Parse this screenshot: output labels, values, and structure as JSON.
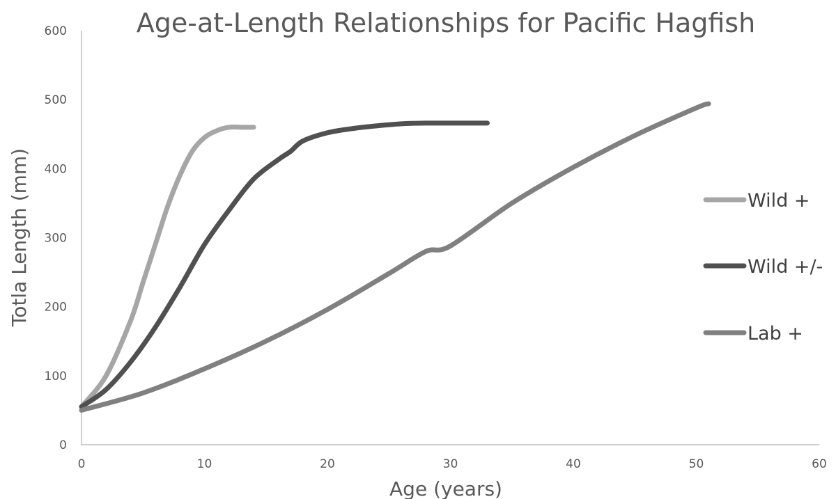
{
  "chart_data": {
    "type": "line",
    "title": "Age-at-Length Relationships for Pacific Hagfish",
    "xlabel": "Age (years)",
    "ylabel": "Totla Length (mm)",
    "xlim": [
      0,
      60
    ],
    "ylim": [
      0,
      600
    ],
    "x_ticks": [
      "0",
      "10",
      "20",
      "30",
      "40",
      "50",
      "60"
    ],
    "y_ticks": [
      "0",
      "100",
      "200",
      "300",
      "400",
      "500",
      "600"
    ],
    "grid": false,
    "legend_position": "right",
    "series": [
      {
        "name": "Wild +",
        "color": "#a6a6a6",
        "x": [
          0,
          2,
          4,
          5,
          6,
          7,
          8,
          9,
          10,
          11,
          12,
          13,
          14
        ],
        "y": [
          55,
          100,
          180,
          235,
          290,
          345,
          390,
          425,
          445,
          455,
          460,
          460,
          460
        ]
      },
      {
        "name": "Wild +/-",
        "color": "#505050",
        "x": [
          0,
          2,
          4,
          6,
          8,
          10,
          12,
          14,
          16,
          17,
          18,
          20,
          22,
          24,
          26,
          28,
          30,
          33
        ],
        "y": [
          55,
          80,
          120,
          170,
          228,
          290,
          340,
          385,
          413,
          425,
          440,
          452,
          458,
          462,
          465,
          466,
          466,
          466
        ]
      },
      {
        "name": "Lab +",
        "color": "#808080",
        "x": [
          0,
          5,
          10,
          15,
          20,
          25,
          28,
          30,
          35,
          40,
          45,
          50,
          51
        ],
        "y": [
          50,
          75,
          110,
          150,
          196,
          248,
          280,
          288,
          350,
          402,
          448,
          488,
          494
        ]
      }
    ]
  }
}
